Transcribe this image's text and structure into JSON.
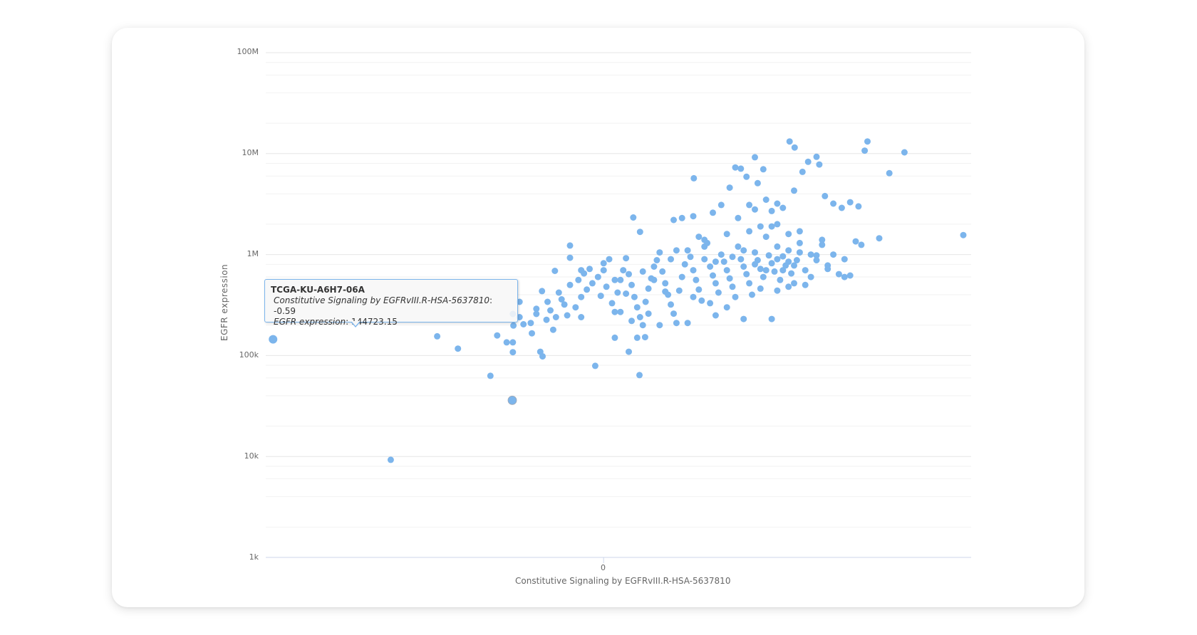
{
  "chart": {
    "y_axis_title": "EGFR expression",
    "x_axis_title": "Constitutive Signaling by EGFRvIII.R-HSA-5637810",
    "y_tick_labels": [
      "100M",
      "10M",
      "1M",
      "100k",
      "10k",
      "1k"
    ],
    "x_tick_labels": [
      "0"
    ],
    "marker_color": "#7cb5ec"
  },
  "tooltip": {
    "title": "TCGA-KU-A6H7-06A",
    "x_label": "Constitutive Signaling by EGFRvIII.R-HSA-5637810",
    "x_value": ": -0.59",
    "y_label": "EGFR expression",
    "y_value": ": 144723.15"
  },
  "chart_data": {
    "type": "scatter",
    "title": "",
    "xlabel": "Constitutive Signaling by EGFRvIII.R-HSA-5637810",
    "ylabel": "EGFR expression",
    "y_scale": "log",
    "ylim": [
      1000,
      100000000
    ],
    "xlim": [
      -0.603,
      0.656
    ],
    "y_ticks": [
      1000,
      10000,
      100000,
      1000000,
      10000000,
      100000000
    ],
    "y_tick_labels": [
      "1k",
      "10k",
      "100k",
      "1M",
      "10M",
      "100M"
    ],
    "x_ticks": [
      0
    ],
    "x_tick_labels": [
      "0"
    ],
    "grid": true,
    "legend": false,
    "highlighted_point": {
      "name": "TCGA-KU-A6H7-06A",
      "x": -0.59,
      "y": 144723.15
    },
    "series": [
      {
        "name": "samples",
        "color": "#7cb5ec",
        "points": [
          [
            -0.59,
            144723
          ],
          [
            -0.38,
            9270
          ],
          [
            -0.163,
            36000
          ],
          [
            -0.297,
            155000
          ],
          [
            -0.26,
            117000
          ],
          [
            -0.202,
            63000
          ],
          [
            -0.19,
            158000
          ],
          [
            -0.173,
            135000
          ],
          [
            -0.162,
            135000
          ],
          [
            -0.162,
            108000
          ],
          [
            -0.161,
            198000
          ],
          [
            -0.162,
            258000
          ],
          [
            -0.143,
            204000
          ],
          [
            -0.15,
            340000
          ],
          [
            -0.113,
            109000
          ],
          [
            -0.109,
            98000
          ],
          [
            -0.128,
            166000
          ],
          [
            -0.12,
            258000
          ],
          [
            -0.11,
            435000
          ],
          [
            -0.102,
            226000
          ],
          [
            -0.087,
            690000
          ],
          [
            -0.06,
            1230000
          ],
          [
            -0.06,
            930000
          ],
          [
            -0.015,
            79000
          ],
          [
            0.045,
            109000
          ],
          [
            0.064,
            64000
          ],
          [
            0.074,
            152000
          ],
          [
            0.053,
            2330000
          ],
          [
            0.065,
            1680000
          ],
          [
            0.161,
            5700000
          ],
          [
            0.332,
            13200000
          ],
          [
            0.341,
            11500000
          ],
          [
            0.471,
            13200000
          ],
          [
            0.466,
            10700000
          ],
          [
            0.537,
            10300000
          ],
          [
            0.51,
            6400000
          ],
          [
            0.642,
            1560000
          ],
          [
            0.492,
            1450000
          ],
          [
            -0.08,
            420000
          ],
          [
            -0.07,
            320000
          ],
          [
            -0.095,
            280000
          ],
          [
            -0.085,
            240000
          ],
          [
            -0.075,
            360000
          ],
          [
            -0.065,
            250000
          ],
          [
            -0.05,
            300000
          ],
          [
            -0.04,
            380000
          ],
          [
            -0.03,
            450000
          ],
          [
            -0.02,
            520000
          ],
          [
            -0.045,
            560000
          ],
          [
            -0.035,
            650000
          ],
          [
            -0.025,
            720000
          ],
          [
            -0.01,
            600000
          ],
          [
            0.0,
            820000
          ],
          [
            0.01,
            900000
          ],
          [
            0.005,
            480000
          ],
          [
            -0.005,
            390000
          ],
          [
            0.015,
            330000
          ],
          [
            0.02,
            270000
          ],
          [
            0.025,
            420000
          ],
          [
            0.03,
            560000
          ],
          [
            0.035,
            700000
          ],
          [
            0.04,
            920000
          ],
          [
            0.045,
            640000
          ],
          [
            0.05,
            500000
          ],
          [
            0.055,
            380000
          ],
          [
            0.06,
            300000
          ],
          [
            0.065,
            240000
          ],
          [
            0.07,
            200000
          ],
          [
            0.075,
            340000
          ],
          [
            0.08,
            460000
          ],
          [
            0.085,
            580000
          ],
          [
            0.09,
            760000
          ],
          [
            0.095,
            880000
          ],
          [
            0.1,
            1050000
          ],
          [
            0.105,
            680000
          ],
          [
            0.11,
            520000
          ],
          [
            0.115,
            400000
          ],
          [
            0.12,
            320000
          ],
          [
            0.125,
            260000
          ],
          [
            0.13,
            210000
          ],
          [
            0.135,
            440000
          ],
          [
            0.14,
            600000
          ],
          [
            0.145,
            800000
          ],
          [
            0.15,
            1100000
          ],
          [
            0.155,
            950000
          ],
          [
            0.16,
            700000
          ],
          [
            0.165,
            560000
          ],
          [
            0.17,
            450000
          ],
          [
            0.175,
            350000
          ],
          [
            0.18,
            900000
          ],
          [
            0.185,
            1300000
          ],
          [
            0.19,
            760000
          ],
          [
            0.195,
            620000
          ],
          [
            0.2,
            520000
          ],
          [
            0.205,
            420000
          ],
          [
            0.21,
            1000000
          ],
          [
            0.215,
            850000
          ],
          [
            0.22,
            700000
          ],
          [
            0.225,
            580000
          ],
          [
            0.23,
            480000
          ],
          [
            0.235,
            380000
          ],
          [
            0.24,
            1200000
          ],
          [
            0.245,
            900000
          ],
          [
            0.25,
            760000
          ],
          [
            0.255,
            640000
          ],
          [
            0.26,
            520000
          ],
          [
            0.265,
            400000
          ],
          [
            0.27,
            1050000
          ],
          [
            0.275,
            880000
          ],
          [
            0.28,
            720000
          ],
          [
            0.285,
            600000
          ],
          [
            0.29,
            1500000
          ],
          [
            0.295,
            980000
          ],
          [
            0.3,
            820000
          ],
          [
            0.305,
            680000
          ],
          [
            0.31,
            1200000
          ],
          [
            0.315,
            560000
          ],
          [
            0.32,
            960000
          ],
          [
            0.325,
            780000
          ],
          [
            0.33,
            1100000
          ],
          [
            0.335,
            650000
          ],
          [
            0.34,
            520000
          ],
          [
            0.345,
            880000
          ],
          [
            0.35,
            1300000
          ],
          [
            0.36,
            700000
          ],
          [
            0.37,
            1000000
          ],
          [
            0.38,
            880000
          ],
          [
            0.39,
            1250000
          ],
          [
            0.4,
            780000
          ],
          [
            0.41,
            1000000
          ],
          [
            0.42,
            640000
          ],
          [
            0.43,
            900000
          ],
          [
            0.125,
            2200000
          ],
          [
            0.14,
            2300000
          ],
          [
            0.17,
            1500000
          ],
          [
            0.195,
            2600000
          ],
          [
            0.21,
            3100000
          ],
          [
            0.225,
            4600000
          ],
          [
            0.235,
            7300000
          ],
          [
            0.245,
            7100000
          ],
          [
            0.255,
            5900000
          ],
          [
            0.27,
            9200000
          ],
          [
            0.275,
            5100000
          ],
          [
            0.285,
            7000000
          ],
          [
            0.26,
            3100000
          ],
          [
            0.29,
            3500000
          ],
          [
            0.3,
            2700000
          ],
          [
            0.31,
            3200000
          ],
          [
            0.32,
            2900000
          ],
          [
            0.34,
            4300000
          ],
          [
            0.355,
            6600000
          ],
          [
            0.365,
            8300000
          ],
          [
            0.38,
            9300000
          ],
          [
            0.385,
            7800000
          ],
          [
            0.395,
            3800000
          ],
          [
            0.41,
            3200000
          ],
          [
            0.425,
            2900000
          ],
          [
            0.44,
            3300000
          ],
          [
            0.455,
            3000000
          ],
          [
            0.45,
            1350000
          ],
          [
            0.46,
            1250000
          ],
          [
            0.43,
            600000
          ],
          [
            0.44,
            620000
          ],
          [
            0.4,
            720000
          ],
          [
            0.38,
            980000
          ],
          [
            0.36,
            500000
          ],
          [
            0.33,
            480000
          ],
          [
            0.31,
            440000
          ],
          [
            0.3,
            230000
          ],
          [
            0.25,
            230000
          ],
          [
            0.2,
            250000
          ],
          [
            0.15,
            210000
          ],
          [
            0.1,
            200000
          ],
          [
            0.05,
            220000
          ],
          [
            0.03,
            270000
          ],
          [
            -0.04,
            240000
          ],
          [
            -0.12,
            290000
          ],
          [
            -0.1,
            340000
          ],
          [
            -0.09,
            180000
          ],
          [
            -0.13,
            210000
          ],
          [
            -0.15,
            240000
          ],
          [
            0.02,
            150000
          ],
          [
            0.06,
            150000
          ],
          [
            0.08,
            260000
          ],
          [
            0.11,
            430000
          ],
          [
            0.16,
            380000
          ],
          [
            0.19,
            330000
          ],
          [
            0.22,
            300000
          ],
          [
            0.28,
            460000
          ],
          [
            0.33,
            850000
          ],
          [
            0.35,
            1050000
          ],
          [
            0.37,
            600000
          ],
          [
            -0.06,
            500000
          ],
          [
            -0.04,
            700000
          ],
          [
            0.0,
            700000
          ],
          [
            0.02,
            560000
          ],
          [
            0.04,
            410000
          ],
          [
            0.07,
            680000
          ],
          [
            0.09,
            560000
          ],
          [
            0.12,
            900000
          ],
          [
            0.13,
            1100000
          ],
          [
            0.18,
            1200000
          ],
          [
            0.2,
            850000
          ],
          [
            0.23,
            950000
          ],
          [
            0.25,
            1100000
          ],
          [
            0.27,
            800000
          ],
          [
            0.29,
            700000
          ],
          [
            0.31,
            900000
          ],
          [
            0.32,
            700000
          ],
          [
            0.34,
            780000
          ],
          [
            0.26,
            1700000
          ],
          [
            0.28,
            1900000
          ],
          [
            0.3,
            1900000
          ],
          [
            0.33,
            1600000
          ],
          [
            0.35,
            1700000
          ],
          [
            0.39,
            1400000
          ],
          [
            0.18,
            1400000
          ],
          [
            0.22,
            1600000
          ],
          [
            0.16,
            2400000
          ],
          [
            0.24,
            2300000
          ],
          [
            0.27,
            2800000
          ],
          [
            0.31,
            2000000
          ]
        ]
      }
    ]
  }
}
